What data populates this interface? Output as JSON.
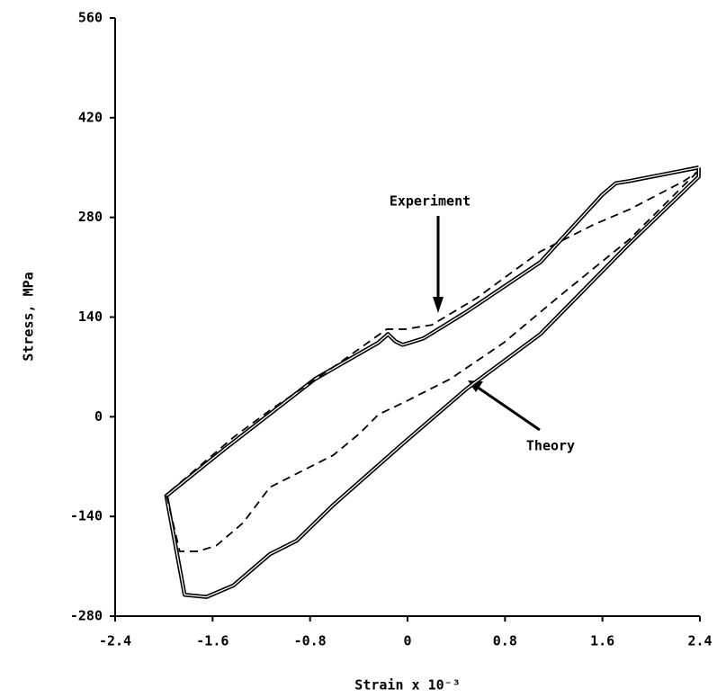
{
  "chart_data": {
    "type": "line",
    "xlabel": "Strain x 10⁻³",
    "ylabel": "Stress, MPa",
    "xlim": [
      -2.4,
      2.4
    ],
    "xticks": [
      -2.4,
      -1.6,
      -0.8,
      0,
      0.8,
      1.6,
      2.4
    ],
    "ylim": [
      -280,
      560
    ],
    "yticks": [
      -280,
      -140,
      0,
      140,
      280,
      420,
      560
    ],
    "series": [
      {
        "name": "Theory",
        "color": "#000000",
        "linestyle": "double",
        "x": [
          2.39,
          2.39,
          1.82,
          1.09,
          0.49,
          -0.02,
          -0.61,
          -0.91,
          -1.13,
          -1.43,
          -1.65,
          -1.83,
          -1.98,
          -1.5,
          -0.76,
          -0.24,
          -0.16,
          -0.1,
          -0.04,
          0.13,
          0.49,
          1.09,
          1.6,
          1.71,
          1.82,
          2.27,
          2.39
        ],
        "values": [
          350,
          337,
          243,
          116,
          40,
          -35,
          -124,
          -174,
          -193,
          -237,
          -253,
          -250,
          -111,
          -45,
          53,
          104,
          116,
          106,
          101,
          110,
          148,
          217,
          312,
          328,
          331,
          346,
          350
        ]
      },
      {
        "name": "Experiment",
        "color": "#000000",
        "linestyle": "dashed",
        "x": [
          2.38,
          1.82,
          1.23,
          0.79,
          0.35,
          -0.02,
          -0.24,
          -0.39,
          -0.61,
          -0.83,
          -1.13,
          -1.35,
          -1.57,
          -1.72,
          -1.87,
          -1.98,
          -1.43,
          -1.13,
          -0.54,
          -0.17,
          -0.02,
          0.2,
          0.57,
          1.09,
          1.53,
          1.82,
          2.27,
          2.38
        ],
        "values": [
          344,
          249,
          167,
          104,
          53,
          21,
          3,
          -23,
          -54,
          -73,
          -99,
          -149,
          -181,
          -189,
          -189,
          -109,
          -29,
          9,
          78,
          123,
          123,
          129,
          167,
          232,
          270,
          291,
          331,
          344
        ]
      }
    ]
  }
}
